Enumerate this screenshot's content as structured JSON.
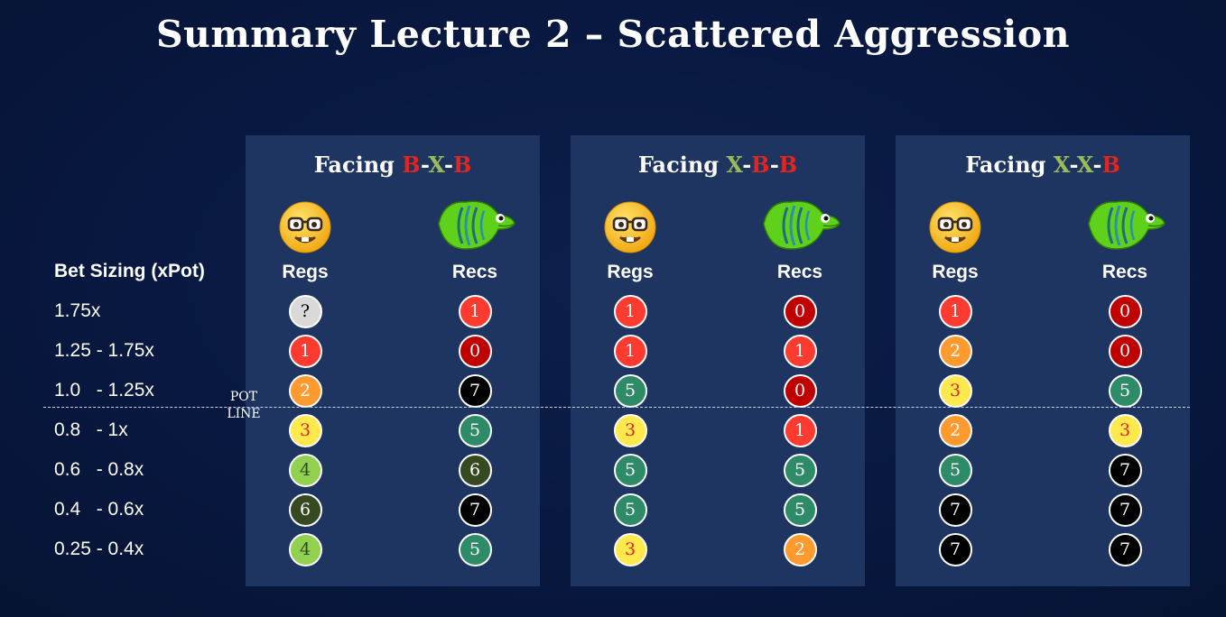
{
  "title": "Summary Lecture 2 – Scattered Aggression",
  "row_header": "Bet Sizing (xPot)",
  "rows": [
    "1.75x",
    "1.25 - 1.75x",
    "1.0   - 1.25x",
    "0.8   - 1x",
    "0.6   - 0.8x",
    "0.4   - 0.6x",
    "0.25 - 0.4x"
  ],
  "pot_line_label": "POT\nLINE",
  "column_labels": {
    "regs": "Regs",
    "recs": "Recs"
  },
  "icons": {
    "regs": "nerd-face-icon",
    "recs": "green-fish-icon"
  },
  "panels": [
    {
      "title_prefix": "Facing ",
      "title_parts": [
        {
          "text": "B",
          "cls": "b"
        },
        {
          "text": "-",
          "cls": "dash"
        },
        {
          "text": "X",
          "cls": "x"
        },
        {
          "text": "-",
          "cls": "dash"
        },
        {
          "text": "B",
          "cls": "b"
        }
      ],
      "regs": [
        "?",
        "1",
        "2",
        "3",
        "4",
        "6",
        "4"
      ],
      "recs": [
        "1",
        "0",
        "7",
        "5",
        "6",
        "7",
        "5"
      ]
    },
    {
      "title_prefix": "Facing ",
      "title_parts": [
        {
          "text": "X",
          "cls": "x"
        },
        {
          "text": "-",
          "cls": "dash"
        },
        {
          "text": "B",
          "cls": "b"
        },
        {
          "text": "-",
          "cls": "dash"
        },
        {
          "text": "B",
          "cls": "b"
        }
      ],
      "regs": [
        "1",
        "1",
        "5",
        "3",
        "5",
        "5",
        "3"
      ],
      "recs": [
        "0",
        "1",
        "0",
        "1",
        "5",
        "5",
        "2"
      ]
    },
    {
      "title_prefix": "Facing ",
      "title_parts": [
        {
          "text": "X",
          "cls": "x"
        },
        {
          "text": "-",
          "cls": "dash"
        },
        {
          "text": "X",
          "cls": "x"
        },
        {
          "text": "-",
          "cls": "dash"
        },
        {
          "text": "B",
          "cls": "b"
        }
      ],
      "regs": [
        "1",
        "2",
        "3",
        "2",
        "5",
        "7",
        "7"
      ],
      "recs": [
        "0",
        "0",
        "5",
        "3",
        "7",
        "7",
        "7"
      ]
    }
  ],
  "score_colors": {
    "?": {
      "bg": "#d9d9d9",
      "fg": "#000000"
    },
    "0": {
      "bg": "#c00000",
      "fg": "#ffffff"
    },
    "1": {
      "bg": "#ff3b2f",
      "fg": "#ffffff"
    },
    "2": {
      "bg": "#ff9a2e",
      "fg": "#ffffff"
    },
    "3": {
      "bg": "#ffe94d",
      "fg": "#e3251c"
    },
    "4": {
      "bg": "#92d050",
      "fg": "#2e4a14"
    },
    "5": {
      "bg": "#2e8b67",
      "fg": "#ffffff"
    },
    "6": {
      "bg": "#354a21",
      "fg": "#ffffff"
    },
    "7": {
      "bg": "#000000",
      "fg": "#ffffff"
    }
  }
}
